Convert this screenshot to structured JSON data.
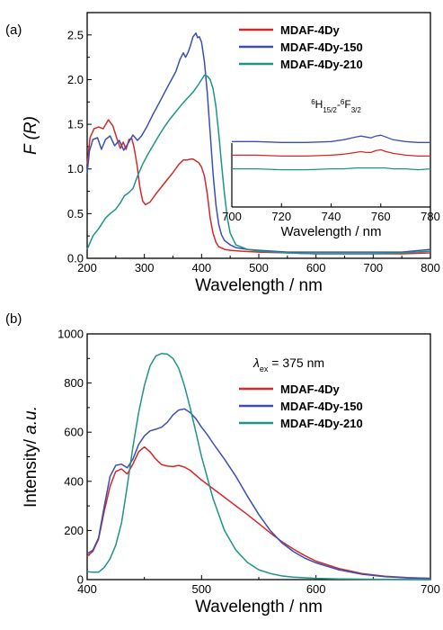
{
  "colors": {
    "red": "#d62828",
    "blue": "#3a4fb5",
    "teal": "#1e9484"
  },
  "chart_data": [
    {
      "type": "line",
      "panel_label": "(a)",
      "xlabel": "Wavelength / nm",
      "ylabel_main": "F",
      "ylabel_var": "(R)",
      "xlim": [
        200,
        800
      ],
      "ylim": [
        0.0,
        2.75
      ],
      "xticks": [
        200,
        300,
        400,
        500,
        600,
        700,
        800
      ],
      "xtick_labels": [
        "200",
        "300",
        "400",
        "500",
        "600",
        "700",
        "800"
      ],
      "yticks": [
        0.0,
        0.5,
        1.0,
        1.5,
        2.0,
        2.5
      ],
      "ytick_labels": [
        "0.0",
        "0.5",
        "1.0",
        "1.5",
        "2.0",
        "2.5"
      ],
      "legend_position": "top-right",
      "series": [
        {
          "name": "MDAF-4Dy",
          "color": "#d62828",
          "x": [
            200,
            205,
            212,
            220,
            228,
            237,
            245,
            252,
            258,
            263,
            268,
            273,
            278,
            282,
            287,
            292,
            297,
            302,
            310,
            320,
            330,
            340,
            350,
            360,
            368,
            375,
            380,
            385,
            390,
            395,
            400,
            405,
            410,
            415,
            420,
            425,
            430,
            440,
            450,
            470,
            500,
            550,
            600,
            650,
            700,
            750,
            800
          ],
          "y": [
            1.05,
            1.35,
            1.45,
            1.47,
            1.45,
            1.55,
            1.48,
            1.34,
            1.23,
            1.3,
            1.22,
            1.33,
            1.34,
            1.24,
            1.05,
            0.8,
            0.64,
            0.6,
            0.63,
            0.72,
            0.8,
            0.88,
            0.96,
            1.05,
            1.1,
            1.1,
            1.11,
            1.11,
            1.09,
            1.07,
            1.02,
            0.92,
            0.72,
            0.45,
            0.28,
            0.18,
            0.13,
            0.1,
            0.09,
            0.08,
            0.07,
            0.06,
            0.05,
            0.05,
            0.05,
            0.05,
            0.06
          ]
        },
        {
          "name": "MDAF-4Dy-150",
          "color": "#3a4fb5",
          "x": [
            200,
            204,
            210,
            218,
            225,
            232,
            240,
            248,
            256,
            264,
            272,
            280,
            288,
            295,
            305,
            315,
            325,
            335,
            345,
            355,
            362,
            368,
            372,
            376,
            380,
            385,
            390,
            393,
            396,
            400,
            405,
            410,
            415,
            420,
            425,
            430,
            435,
            440,
            450,
            460,
            480,
            500,
            550,
            600,
            650,
            700,
            750,
            800
          ],
          "y": [
            0.95,
            1.2,
            1.33,
            1.35,
            1.22,
            1.33,
            1.37,
            1.26,
            1.32,
            1.21,
            1.29,
            1.38,
            1.32,
            1.37,
            1.48,
            1.61,
            1.73,
            1.85,
            1.97,
            2.09,
            2.22,
            2.3,
            2.25,
            2.3,
            2.37,
            2.48,
            2.52,
            2.47,
            2.48,
            2.42,
            2.2,
            1.85,
            1.4,
            0.95,
            0.6,
            0.38,
            0.26,
            0.2,
            0.15,
            0.12,
            0.1,
            0.09,
            0.07,
            0.07,
            0.07,
            0.07,
            0.07,
            0.1
          ]
        },
        {
          "name": "MDAF-4Dy-210",
          "color": "#1e9484",
          "x": [
            200,
            210,
            220,
            232,
            240,
            250,
            258,
            265,
            272,
            280,
            288,
            296,
            305,
            315,
            325,
            335,
            345,
            355,
            365,
            375,
            385,
            395,
            400,
            405,
            410,
            415,
            420,
            425,
            430,
            435,
            440,
            445,
            450,
            460,
            480,
            500,
            550,
            600,
            650,
            700,
            750,
            800
          ],
          "y": [
            0.1,
            0.25,
            0.33,
            0.45,
            0.5,
            0.55,
            0.62,
            0.7,
            0.73,
            0.78,
            0.92,
            1.04,
            1.15,
            1.26,
            1.37,
            1.47,
            1.56,
            1.64,
            1.72,
            1.79,
            1.86,
            1.95,
            2.0,
            2.05,
            2.04,
            2.0,
            1.9,
            1.7,
            1.4,
            1.05,
            0.72,
            0.45,
            0.28,
            0.15,
            0.1,
            0.08,
            0.06,
            0.05,
            0.05,
            0.05,
            0.06,
            0.08
          ]
        }
      ],
      "inset": {
        "annotation": "⁶H15/2-⁶F3/2",
        "xlabel": "Wavelength / nm",
        "xlim": [
          700,
          780
        ],
        "xticks": [
          700,
          720,
          740,
          760,
          780
        ],
        "xtick_labels": [
          "700",
          "720",
          "740",
          "760",
          "780"
        ],
        "ylim": [
          0.0,
          1.0
        ],
        "series": [
          {
            "name": "MDAF-4Dy-150",
            "color": "#3a4fb5",
            "x": [
              700,
              710,
              720,
              730,
              740,
              745,
              750,
              752,
              754,
              756,
              758,
              760,
              762,
              765,
              770,
              775,
              780
            ],
            "y": [
              0.72,
              0.72,
              0.71,
              0.71,
              0.72,
              0.74,
              0.77,
              0.78,
              0.77,
              0.76,
              0.78,
              0.79,
              0.77,
              0.74,
              0.72,
              0.71,
              0.71
            ]
          },
          {
            "name": "MDAF-4Dy",
            "color": "#d62828",
            "x": [
              700,
              710,
              720,
              730,
              740,
              745,
              750,
              752,
              754,
              756,
              758,
              760,
              762,
              765,
              770,
              775,
              780
            ],
            "y": [
              0.57,
              0.57,
              0.56,
              0.56,
              0.57,
              0.58,
              0.6,
              0.61,
              0.6,
              0.6,
              0.62,
              0.63,
              0.61,
              0.59,
              0.57,
              0.56,
              0.56
            ]
          },
          {
            "name": "MDAF-4Dy-210",
            "color": "#1e9484",
            "x": [
              700,
              710,
              720,
              730,
              740,
              745,
              750,
              752,
              754,
              756,
              758,
              760,
              762,
              765,
              770,
              775,
              780
            ],
            "y": [
              0.42,
              0.42,
              0.41,
              0.41,
              0.42,
              0.42,
              0.43,
              0.43,
              0.43,
              0.43,
              0.43,
              0.43,
              0.43,
              0.42,
              0.42,
              0.41,
              0.42
            ]
          }
        ]
      }
    },
    {
      "type": "line",
      "panel_label": "(b)",
      "xlabel": "Wavelength / nm",
      "ylabel_main": "Intensity/ ",
      "ylabel_var": "a.u.",
      "xlim": [
        400,
        700
      ],
      "ylim": [
        0,
        1000
      ],
      "xticks": [
        400,
        500,
        600,
        700
      ],
      "xtick_labels": [
        "400",
        "500",
        "600",
        "700"
      ],
      "yticks": [
        0,
        200,
        400,
        600,
        800,
        1000
      ],
      "ytick_labels": [
        "0",
        "200",
        "400",
        "600",
        "800",
        "1000"
      ],
      "legend_position": "top-right",
      "excitation": {
        "symbol": "λ",
        "sub": "ex",
        "text": " = 375 nm"
      },
      "series": [
        {
          "name": "MDAF-4Dy",
          "color": "#d62828",
          "x": [
            400,
            405,
            410,
            415,
            420,
            425,
            430,
            435,
            440,
            445,
            450,
            455,
            460,
            465,
            470,
            475,
            480,
            485,
            490,
            495,
            500,
            510,
            520,
            530,
            540,
            550,
            560,
            570,
            580,
            590,
            600,
            620,
            640,
            660,
            680,
            700
          ],
          "y": [
            95,
            115,
            165,
            280,
            380,
            440,
            450,
            430,
            470,
            520,
            540,
            520,
            490,
            468,
            462,
            460,
            465,
            458,
            445,
            425,
            405,
            370,
            335,
            300,
            265,
            228,
            190,
            155,
            125,
            98,
            75,
            45,
            25,
            14,
            8,
            5
          ]
        },
        {
          "name": "MDAF-4Dy-150",
          "color": "#3a4fb5",
          "x": [
            400,
            405,
            410,
            415,
            420,
            425,
            430,
            435,
            440,
            445,
            450,
            455,
            460,
            465,
            470,
            475,
            480,
            485,
            490,
            495,
            500,
            505,
            510,
            520,
            530,
            540,
            550,
            560,
            570,
            580,
            590,
            600,
            620,
            640,
            660,
            680,
            700
          ],
          "y": [
            105,
            120,
            170,
            300,
            420,
            465,
            470,
            455,
            490,
            550,
            585,
            605,
            612,
            620,
            640,
            670,
            690,
            695,
            680,
            655,
            620,
            590,
            555,
            490,
            420,
            340,
            265,
            200,
            150,
            115,
            88,
            68,
            40,
            22,
            12,
            7,
            5
          ]
        },
        {
          "name": "MDAF-4Dy-210",
          "color": "#1e9484",
          "x": [
            400,
            405,
            410,
            415,
            420,
            425,
            430,
            435,
            440,
            445,
            450,
            455,
            460,
            465,
            470,
            475,
            480,
            485,
            490,
            495,
            500,
            510,
            520,
            530,
            540,
            550,
            560,
            570,
            580,
            600,
            620,
            640,
            660,
            700
          ],
          "y": [
            32,
            30,
            30,
            50,
            85,
            140,
            230,
            380,
            540,
            680,
            790,
            870,
            910,
            920,
            918,
            900,
            860,
            790,
            700,
            600,
            500,
            330,
            200,
            120,
            70,
            40,
            25,
            15,
            10,
            5,
            3,
            2,
            1,
            0
          ]
        }
      ]
    }
  ]
}
